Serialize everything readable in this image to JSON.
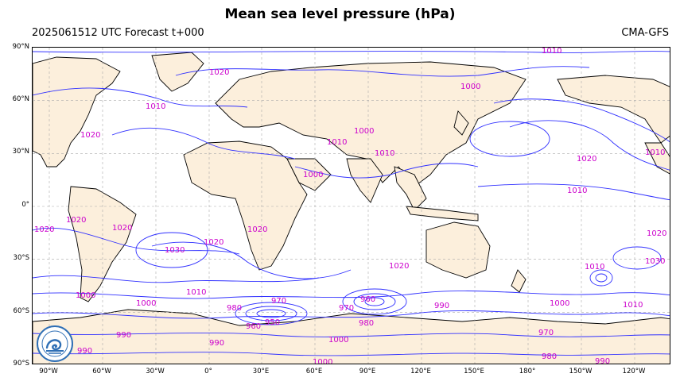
{
  "map": {
    "title": "Mean sea level pressure (hPa)",
    "run_label": "2025061512 UTC Forecast t+000",
    "model_label": "CMA-GFS",
    "projection": "Plate Carree, centered 120°E-ish, lon range 100°W to 120°W+",
    "colors": {
      "isobar": "#3030ff",
      "label": "#cc00cc",
      "land": "#fcefdc",
      "coast": "#000000",
      "grid": "#aaaaaa"
    },
    "lat_labels": [
      "90°N",
      "60°N",
      "30°N",
      "0°",
      "30°S",
      "60°S",
      "90°S"
    ],
    "lon_labels": [
      "90°W",
      "60°W",
      "30°W",
      "0°",
      "30°E",
      "60°E",
      "90°E",
      "120°E",
      "150°E",
      "180°",
      "150°W",
      "120°W"
    ],
    "isobar_labels": [
      {
        "text": "1010"
      },
      {
        "text": "1020"
      },
      {
        "text": "1000"
      },
      {
        "text": "1010"
      },
      {
        "text": "1020"
      },
      {
        "text": "1010"
      },
      {
        "text": "1000"
      },
      {
        "text": "1010"
      },
      {
        "text": "1000"
      },
      {
        "text": "1020"
      },
      {
        "text": "1010"
      },
      {
        "text": "1010"
      },
      {
        "text": "1020"
      },
      {
        "text": "1020"
      },
      {
        "text": "1020"
      },
      {
        "text": "1020"
      },
      {
        "text": "1020"
      },
      {
        "text": "1030"
      },
      {
        "text": "1020"
      },
      {
        "text": "1010"
      },
      {
        "text": "1030"
      },
      {
        "text": "1020"
      },
      {
        "text": "1000"
      },
      {
        "text": "1000"
      },
      {
        "text": "1010"
      },
      {
        "text": "990"
      },
      {
        "text": "980"
      },
      {
        "text": "970"
      },
      {
        "text": "960"
      },
      {
        "text": "950"
      },
      {
        "text": "970"
      },
      {
        "text": "960"
      },
      {
        "text": "980"
      },
      {
        "text": "990"
      },
      {
        "text": "1000"
      },
      {
        "text": "1010"
      },
      {
        "text": "990"
      },
      {
        "text": "990"
      },
      {
        "text": "1000"
      },
      {
        "text": "1000"
      },
      {
        "text": "970"
      },
      {
        "text": "980"
      },
      {
        "text": "990"
      }
    ],
    "logo_icon": "cma-logo-icon"
  }
}
